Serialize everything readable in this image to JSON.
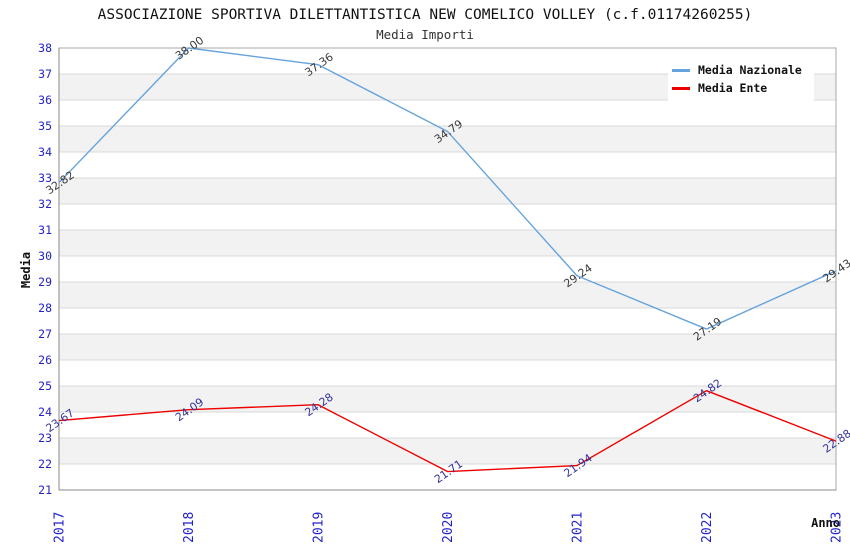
{
  "header": {
    "title": "ASSOCIAZIONE SPORTIVA DILETTANTISTICA NEW COMELICO VOLLEY (c.f.01174260255)",
    "subtitle": "Media Importi"
  },
  "chart_data": {
    "type": "line",
    "title": "ASSOCIAZIONE SPORTIVA DILETTANTISTICA NEW COMELICO VOLLEY (c.f.01174260255)",
    "subtitle": "Media Importi",
    "xlabel": "Anno",
    "ylabel": "Media",
    "x": [
      "2017",
      "2018",
      "2019",
      "2020",
      "2021",
      "2022",
      "2023"
    ],
    "series": [
      {
        "name": "Media Nazionale",
        "color": "#66A3DD",
        "label_color": "#3A3A3A",
        "values": [
          32.82,
          38.0,
          37.36,
          34.79,
          29.24,
          27.19,
          29.43
        ]
      },
      {
        "name": "Media Ente",
        "color": "#EE0000",
        "label_color": "#333399",
        "values": [
          23.67,
          24.09,
          24.28,
          21.71,
          21.94,
          24.82,
          22.88
        ]
      }
    ],
    "ylim": [
      21,
      38
    ],
    "y_tick_step": 1,
    "grid": "horizontal-stripes",
    "legend_position": "top-right",
    "tick_label_color": "#2222CC",
    "stripe_color": "#F2F2F2",
    "gridline_color": "#D9D9D9",
    "border_color": "#A8A8A8",
    "axis_color": "#8A8A8A"
  }
}
